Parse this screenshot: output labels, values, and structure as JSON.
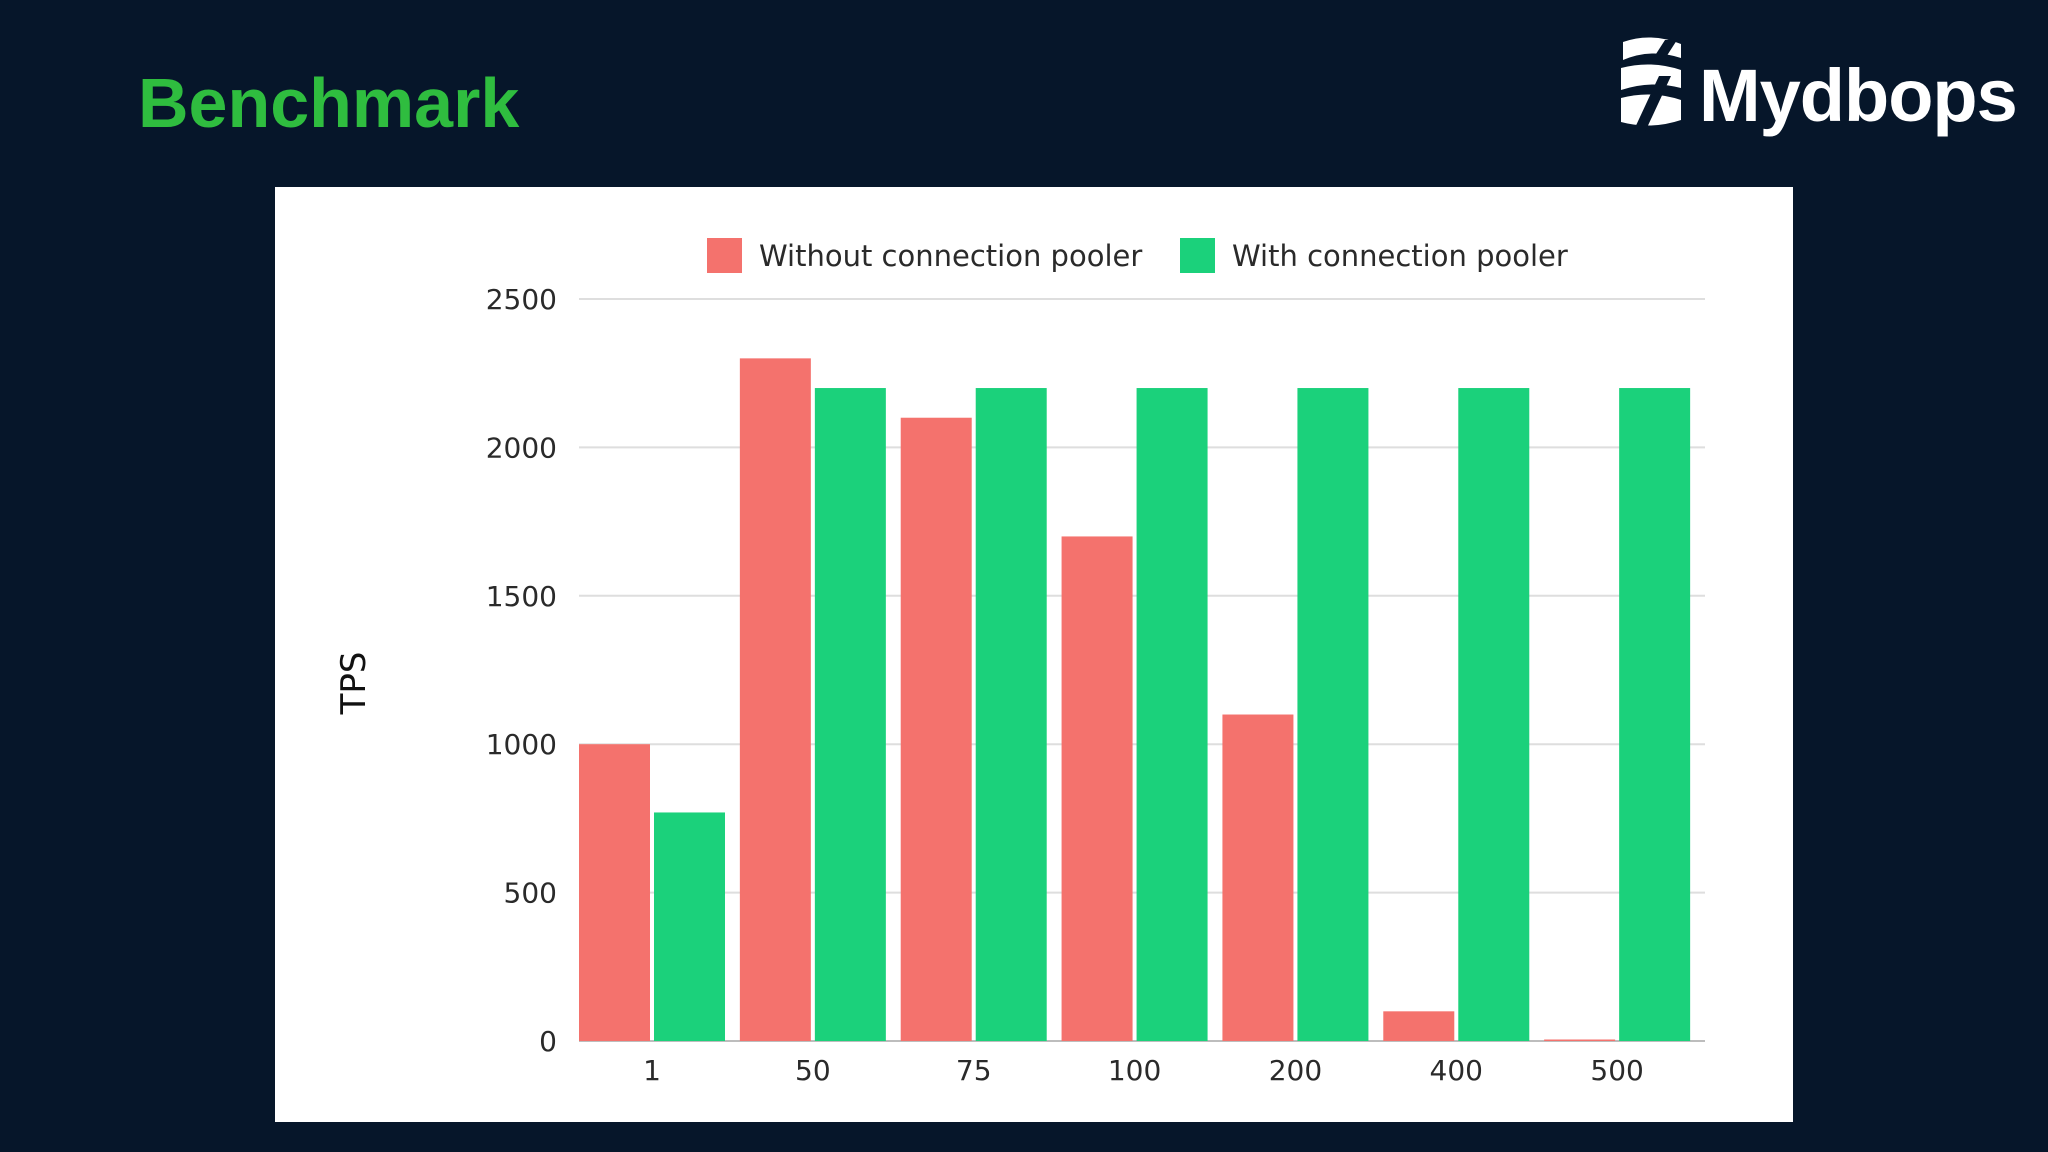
{
  "header": {
    "title": "Benchmark",
    "title_color": "#2fbd3f"
  },
  "logo": {
    "text": "Mydbops",
    "mark_icon": "mydbops-logo-mark-icon"
  },
  "chart_data": {
    "type": "bar",
    "categories": [
      "1",
      "50",
      "75",
      "100",
      "200",
      "400",
      "500"
    ],
    "series": [
      {
        "name": "Without connection pooler",
        "color": "#f4726d",
        "values": [
          1000,
          2300,
          2100,
          1700,
          1100,
          100,
          0
        ]
      },
      {
        "name": "With connection pooler",
        "color": "#1bd17b",
        "values": [
          770,
          2200,
          2200,
          2200,
          2200,
          2200,
          2200
        ]
      }
    ],
    "title": "",
    "xlabel": "",
    "ylabel": "TPS",
    "ylim": [
      0,
      2500
    ],
    "yticks": [
      0,
      500,
      1000,
      1500,
      2000,
      2500
    ],
    "grid": true,
    "legend_position": "top"
  }
}
